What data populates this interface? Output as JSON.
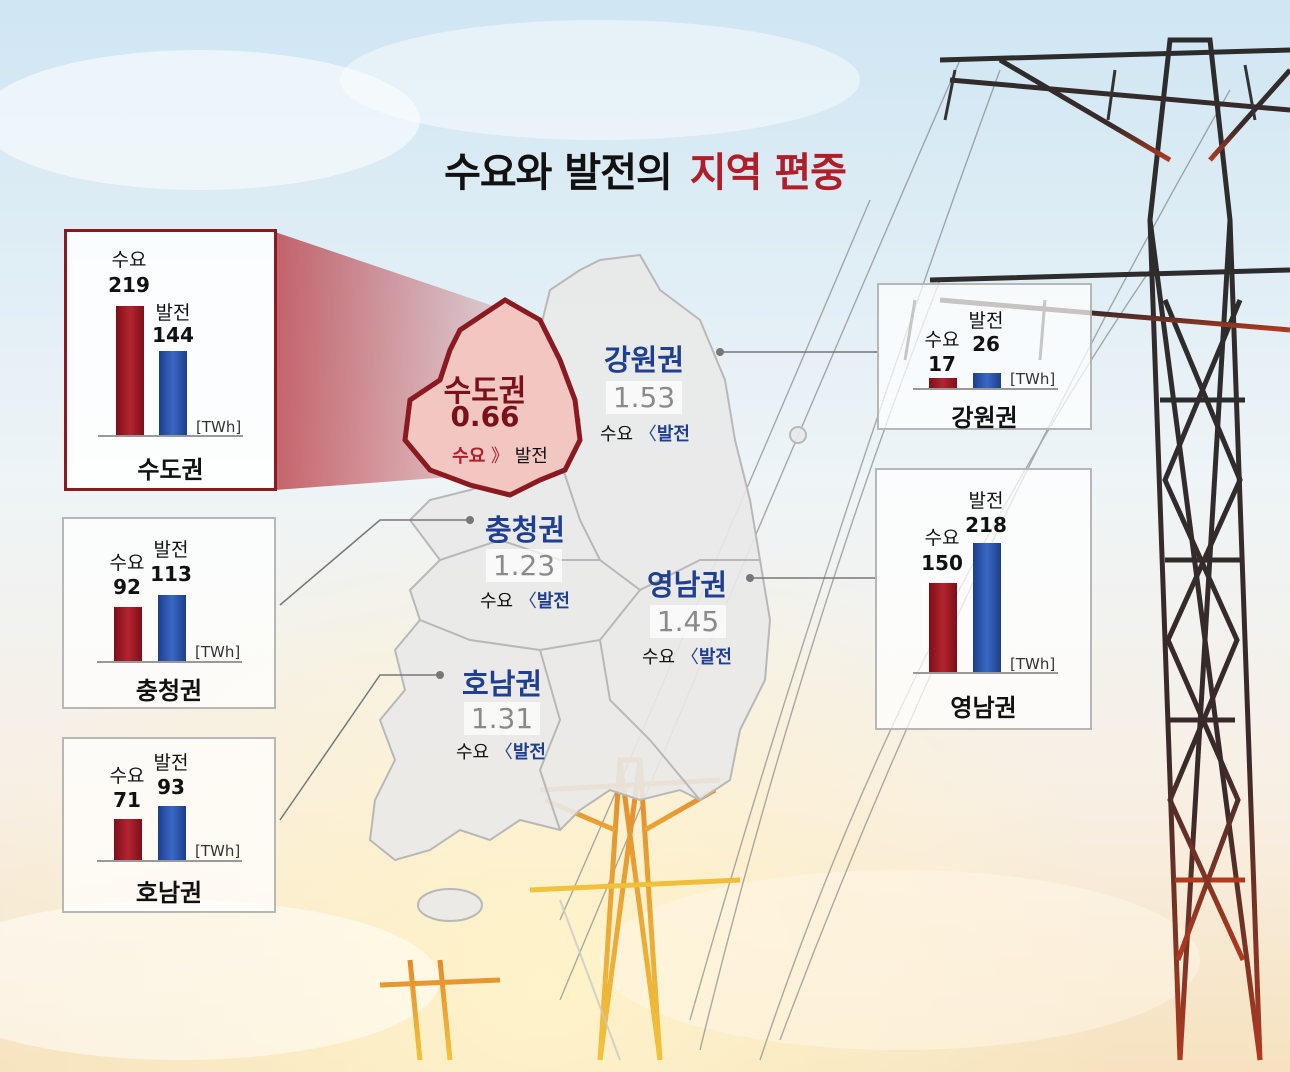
{
  "title": {
    "part1": "수요와 발전의",
    "part2": "지역 편중"
  },
  "labels": {
    "demand": "수요",
    "generation": "발전",
    "unit": "[TWh]"
  },
  "colors": {
    "demand": "#a81c28",
    "generation": "#2a52a8",
    "highlight": "#8a1a20",
    "region_name": "#1f3f92"
  },
  "chart_data": {
    "type": "bar",
    "series": [
      "수요",
      "발전"
    ],
    "unit": "TWh",
    "regions": [
      {
        "name": "수도권",
        "demand": 219,
        "generation": 144,
        "ratio": "0.66",
        "compare_sign": "》",
        "highlight": true
      },
      {
        "name": "강원권",
        "demand": 17,
        "generation": 26,
        "ratio": "1.53",
        "compare_sign": "〈",
        "highlight": false
      },
      {
        "name": "충청권",
        "demand": 92,
        "generation": 113,
        "ratio": "1.23",
        "compare_sign": "〈",
        "highlight": false
      },
      {
        "name": "영남권",
        "demand": 150,
        "generation": 218,
        "ratio": "1.45",
        "compare_sign": "〈",
        "highlight": false
      },
      {
        "name": "호남권",
        "demand": 71,
        "generation": 93,
        "ratio": "1.31",
        "compare_sign": "〈",
        "highlight": false
      }
    ]
  }
}
